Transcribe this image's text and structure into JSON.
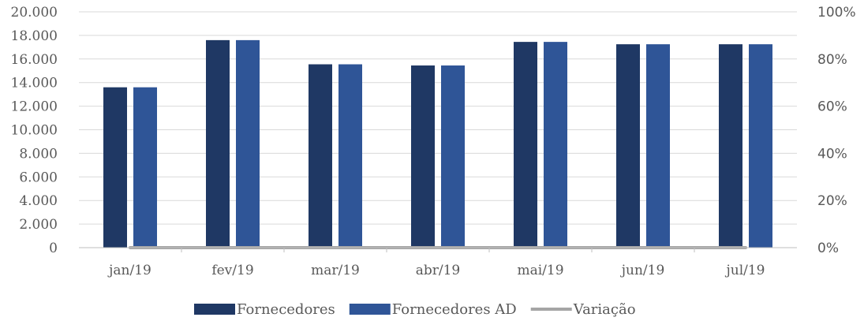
{
  "chart_data": {
    "type": "bar",
    "title": "",
    "xlabel": "",
    "ylabel": "",
    "categories": [
      "jan/19",
      "fev/19",
      "mar/19",
      "abr/19",
      "mai/19",
      "jun/19",
      "jul/19"
    ],
    "series": [
      {
        "name": "Fornecedores",
        "type": "bar",
        "axis": "left",
        "color": "#1f3864",
        "values": [
          13600,
          17600,
          15550,
          15450,
          17450,
          17250,
          17250
        ]
      },
      {
        "name": "Fornecedores AD",
        "type": "bar",
        "axis": "left",
        "color": "#2f5597",
        "values": [
          13600,
          17600,
          15550,
          15450,
          17450,
          17250,
          17250
        ]
      },
      {
        "name": "Variação",
        "type": "line",
        "axis": "right",
        "color": "#a5a5a5",
        "values": [
          0,
          0,
          0,
          0,
          0,
          0,
          0
        ]
      }
    ],
    "ylim": [
      0,
      20000
    ],
    "y_ticks": [
      "0",
      "2.000",
      "4.000",
      "6.000",
      "8.000",
      "10.000",
      "12.000",
      "14.000",
      "16.000",
      "18.000",
      "20.000"
    ],
    "y2lim": [
      0,
      1
    ],
    "y2_ticks": [
      "0%",
      "20%",
      "40%",
      "60%",
      "80%",
      "100%"
    ],
    "grid": true,
    "legend_position": "bottom"
  }
}
